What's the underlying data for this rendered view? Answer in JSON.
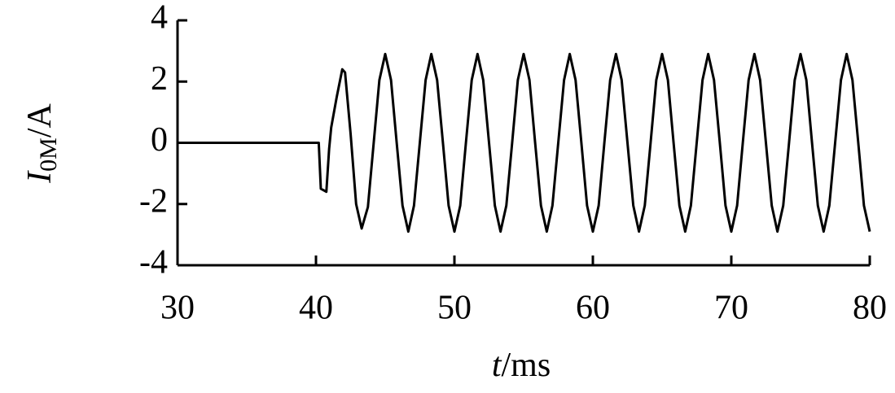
{
  "chart_data": {
    "type": "line",
    "y_label": {
      "symbol": "I",
      "subscript": "0M",
      "unit": "/A"
    },
    "x_label": {
      "symbol": "t",
      "unit": "/ms"
    },
    "xlim": [
      30,
      80
    ],
    "xticks": [
      30,
      40,
      50,
      60,
      70,
      80
    ],
    "ylim": [
      -4,
      4
    ],
    "yticks": [
      -4,
      -2,
      0,
      2,
      4
    ],
    "series": [
      {
        "color": "#000000",
        "x": [
          30,
          40.2,
          40.35,
          40.75,
          40.95,
          41.1,
          41.5,
          41.9,
          42.1,
          42.5,
          42.9,
          43.3,
          43.75,
          44.17,
          44.58,
          45.0,
          45.42,
          45.83,
          46.25,
          46.67,
          47.08,
          47.5,
          47.92,
          48.33,
          48.75,
          49.17,
          49.58,
          50.0,
          50.42,
          50.83,
          51.25,
          51.67,
          52.08,
          52.5,
          52.92,
          53.33,
          53.75,
          54.17,
          54.58,
          55.0,
          55.42,
          55.83,
          56.25,
          56.67,
          57.08,
          57.5,
          57.92,
          58.33,
          58.75,
          59.17,
          59.58,
          60.0,
          60.42,
          60.83,
          61.25,
          61.67,
          62.08,
          62.5,
          62.92,
          63.33,
          63.75,
          64.17,
          64.58,
          65.0,
          65.42,
          65.83,
          66.25,
          66.67,
          67.08,
          67.5,
          67.92,
          68.33,
          68.75,
          69.17,
          69.58,
          70.0,
          70.42,
          70.83,
          71.25,
          71.67,
          72.08,
          72.5,
          72.92,
          73.33,
          73.75,
          74.17,
          74.58,
          75.0,
          75.42,
          75.83,
          76.25,
          76.67,
          77.08,
          77.5,
          77.92,
          78.33,
          78.75,
          79.17,
          79.58,
          80.0
        ],
        "values": [
          0,
          0,
          -1.5,
          -1.6,
          -0.2,
          0.5,
          1.5,
          2.4,
          2.3,
          0.3,
          -2,
          -2.8,
          -2.1,
          0,
          2.05,
          2.9,
          2.05,
          0,
          -2.05,
          -2.9,
          -2.05,
          0,
          2.05,
          2.9,
          2.05,
          0,
          -2.05,
          -2.9,
          -2.05,
          0,
          2.05,
          2.9,
          2.05,
          0,
          -2.05,
          -2.9,
          -2.05,
          0,
          2.05,
          2.9,
          2.05,
          0,
          -2.05,
          -2.9,
          -2.05,
          0,
          2.05,
          2.9,
          2.05,
          0,
          -2.05,
          -2.9,
          -2.05,
          0,
          2.05,
          2.9,
          2.05,
          0,
          -2.05,
          -2.9,
          -2.05,
          0,
          2.05,
          2.9,
          2.05,
          0,
          -2.05,
          -2.9,
          -2.05,
          0,
          2.05,
          2.9,
          2.05,
          0,
          -2.05,
          -2.9,
          -2.05,
          0,
          2.05,
          2.9,
          2.05,
          0,
          -2.05,
          -2.9,
          -2.05,
          0,
          2.05,
          2.9,
          2.05,
          0,
          -2.05,
          -2.9,
          -2.05,
          0,
          2.05,
          2.9,
          2.05,
          0,
          -2.05,
          -2.9
        ]
      }
    ]
  }
}
